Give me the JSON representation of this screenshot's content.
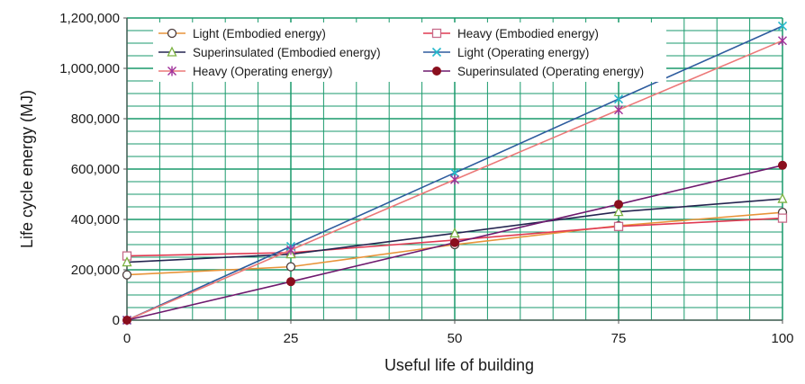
{
  "chart_data": {
    "type": "line",
    "xlabel": "Useful life of building",
    "ylabel": "Life cycle energy (MJ)",
    "x": [
      0,
      25,
      50,
      75,
      100
    ],
    "xlim": [
      0,
      100
    ],
    "ylim": [
      0,
      1200000
    ],
    "x_ticks": [
      0,
      25,
      50,
      75,
      100
    ],
    "x_tick_labels": [
      "0",
      "25",
      "50",
      "75",
      "100"
    ],
    "y_ticks": [
      0,
      200000,
      400000,
      600000,
      800000,
      1000000,
      1200000
    ],
    "y_tick_labels": [
      "0",
      "200,000",
      "400,000",
      "600,000",
      "800,000",
      "1,000,000",
      "1,200,000"
    ],
    "grid": true,
    "grid_color": "#1a9a6c",
    "legend_position": "top",
    "series": [
      {
        "name": "Light (Embodied energy)",
        "color": "#e8943a",
        "marker": "circle-open",
        "values": [
          180000,
          212000,
          300000,
          375000,
          428000
        ]
      },
      {
        "name": "Heavy (Embodied energy)",
        "color": "#e03a52",
        "marker": "square-open",
        "values": [
          255000,
          268000,
          318000,
          372000,
          405000
        ]
      },
      {
        "name": "Superinsulated (Embodied energy)",
        "color": "#252550",
        "marker": "triangle-open",
        "values": [
          230000,
          262000,
          345000,
          430000,
          482000
        ]
      },
      {
        "name": "Light (Operating energy)",
        "color": "#2e5c9e",
        "marker": "x",
        "values": [
          0,
          293000,
          585000,
          878000,
          1168000
        ]
      },
      {
        "name": "Heavy (Operating energy)",
        "color": "#ec7878",
        "marker": "asterisk",
        "values": [
          0,
          279000,
          558000,
          835000,
          1110000
        ]
      },
      {
        "name": "Superinsulated (Operating energy)",
        "color": "#6e1a6e",
        "marker": "circle-filled",
        "values": [
          0,
          153000,
          308000,
          460000,
          615000
        ]
      }
    ],
    "marker_colors": {
      "circle-open": "#4a3a3a",
      "square-open": "#c76b8a",
      "triangle-open": "#7cb342",
      "x": "#25b8cc",
      "asterisk": "#a0309a",
      "circle-filled": "#8a0f1e"
    }
  }
}
